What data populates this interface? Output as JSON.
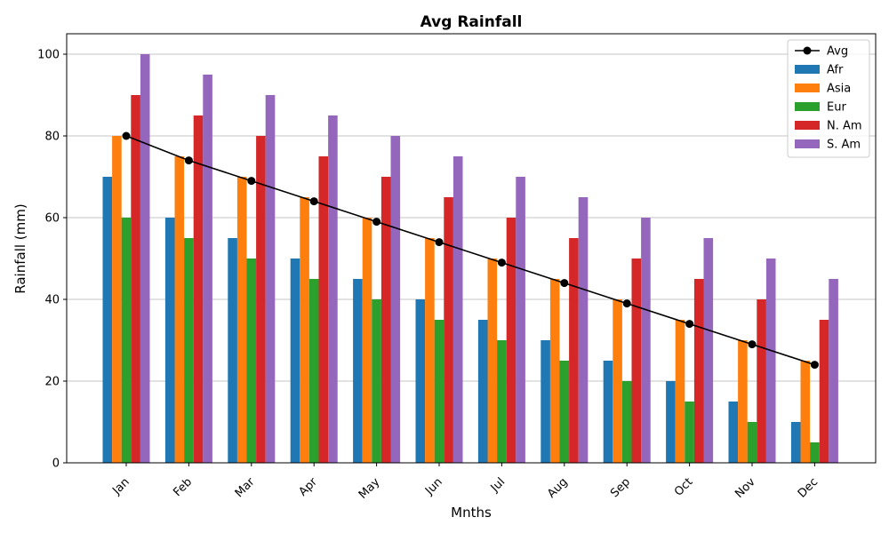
{
  "chart_data": {
    "type": "bar",
    "title": "Avg Rainfall",
    "xlabel": "Mnths",
    "ylabel": "Rainfall (mm)",
    "ylim": [
      0,
      105
    ],
    "yticks": [
      0,
      20,
      40,
      60,
      80,
      100
    ],
    "grid": "horizontal",
    "legend_position": "top-right",
    "categories": [
      "Jan",
      "Feb",
      "Mar",
      "Apr",
      "May",
      "Jun",
      "Jul",
      "Aug",
      "Sep",
      "Oct",
      "Nov",
      "Dec"
    ],
    "series": [
      {
        "name": "Afr",
        "color": "#1f77b4",
        "values": [
          70,
          60,
          55,
          50,
          45,
          40,
          35,
          30,
          25,
          20,
          15,
          10
        ]
      },
      {
        "name": "Asia",
        "color": "#ff7f0e",
        "values": [
          80,
          75,
          70,
          65,
          60,
          55,
          50,
          45,
          40,
          35,
          30,
          25
        ]
      },
      {
        "name": "Eur",
        "color": "#2ca02c",
        "values": [
          60,
          55,
          50,
          45,
          40,
          35,
          30,
          25,
          20,
          15,
          10,
          5
        ]
      },
      {
        "name": "N. Am",
        "color": "#d62728",
        "values": [
          90,
          85,
          80,
          75,
          70,
          65,
          60,
          55,
          50,
          45,
          40,
          35
        ]
      },
      {
        "name": "S. Am",
        "color": "#9467bd",
        "values": [
          100,
          95,
          90,
          85,
          80,
          75,
          70,
          65,
          60,
          55,
          50,
          45
        ]
      }
    ],
    "line": {
      "name": "Avg",
      "color": "#000000",
      "values": [
        80,
        74,
        69,
        64,
        59,
        54,
        49,
        44,
        39,
        34,
        29,
        24
      ]
    }
  }
}
